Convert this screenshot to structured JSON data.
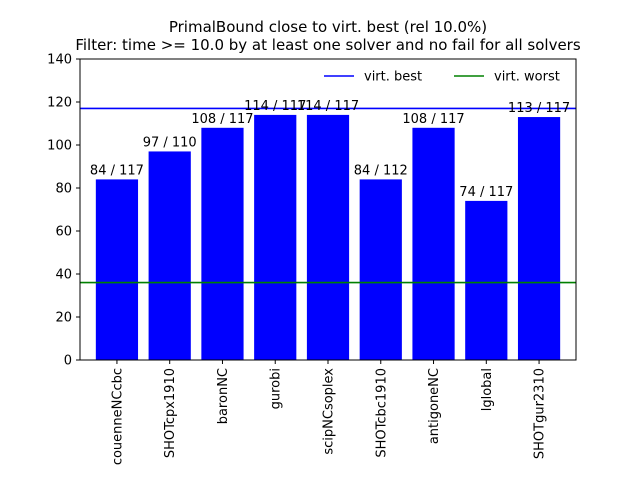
{
  "chart_data": {
    "type": "bar",
    "title": "PrimalBound close to virt. best (rel 10.0%)",
    "subtitle": "Filter: time >= 10.0 by at least one solver and no fail for all solvers",
    "xlabel": "",
    "ylabel": "",
    "ylim": [
      0,
      140
    ],
    "yticks": [
      0,
      20,
      40,
      60,
      80,
      100,
      120,
      140
    ],
    "grid": false,
    "legend_position": "top-right",
    "categories": [
      "couenneNCcbc",
      "SHOTcpx1910",
      "baronNC",
      "gurobi",
      "scipNCsoplex",
      "SHOTcbc1910",
      "antigoneNC",
      "lglobal",
      "SHOTgur2310"
    ],
    "values": [
      84,
      97,
      108,
      114,
      114,
      84,
      108,
      74,
      113
    ],
    "data_labels": [
      "84 / 117",
      "97 / 110",
      "108 / 117",
      "114 / 117",
      "114 / 117",
      "84 / 112",
      "108 / 117",
      "74 / 117",
      "113 / 117"
    ],
    "bar_color": "#0000ff",
    "reference_lines": [
      {
        "name": "virt. best",
        "value": 117,
        "color": "#0000ff"
      },
      {
        "name": "virt. worst",
        "value": 36,
        "color": "#008000"
      }
    ]
  }
}
